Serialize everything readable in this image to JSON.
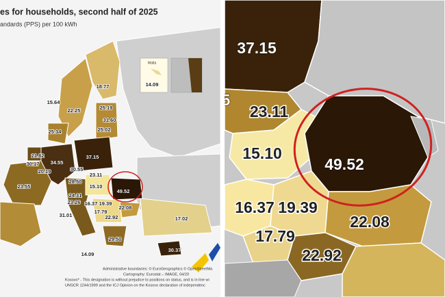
{
  "left_map": {
    "title": "es for households, second half of 2025",
    "subtitle": "andards (PPS) per 100 kWh",
    "inset_name": "Malta",
    "inset_value": "14.09",
    "labels": [
      "18.77",
      "15.64",
      "22.25",
      "25.19",
      "31.60",
      "25.02",
      "25.34",
      "21.82",
      "34.55",
      "37.15",
      "30.17",
      "20.19",
      "30.55",
      "28.50",
      "23.55",
      "15.10",
      "23.11",
      "49.52",
      "24.31",
      "23.26",
      "16.37",
      "19.39",
      "17.79",
      "22.08",
      "22.92",
      "31.01",
      "29.50",
      "17.02",
      "30.37",
      "14.09"
    ],
    "footer": [
      "Administrative boundaries: © EuroGeographics © OpenStreetMa",
      "Cartography: Eurostat – IMAGE, 04/20",
      "Kosovo* - This designation is without prejudice to positions on status, and is in line wi",
      "UNSCR 1244/1999 and the ICJ Opinion on the Kosovo declaration of independenc"
    ]
  },
  "right_map": {
    "labels": [
      "37.15",
      "5",
      "23.11",
      "15.10",
      "49.52",
      "16.37",
      "19.39",
      "17.79",
      "22.08",
      "22.92"
    ]
  }
}
